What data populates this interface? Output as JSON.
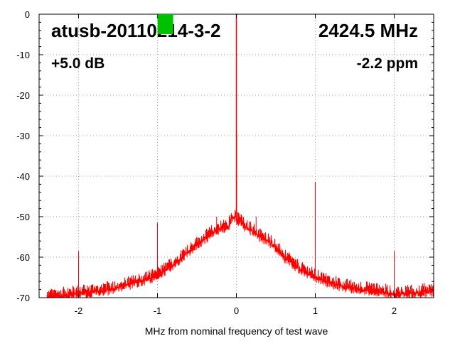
{
  "chart_data": {
    "type": "line",
    "title": "atusb-20110214-3-2",
    "frequency_label": "2424.5 MHz",
    "gain_label": "+5.0 dB",
    "ppm_label": "-2.2 ppm",
    "xlabel": "MHz from nominal frequency of test wave",
    "ylabel": "",
    "xlim": [
      -2.5,
      2.5
    ],
    "ylim": [
      -70,
      0
    ],
    "xticks": [
      -2,
      -1,
      0,
      1,
      2
    ],
    "xtick_labels": [
      "-2",
      "-1",
      "0",
      "1",
      "2"
    ],
    "yticks": [
      0,
      -10,
      -20,
      -30,
      -40,
      -50,
      -60,
      -70
    ],
    "ytick_labels": [
      "0",
      "-10",
      "-20",
      "-30",
      "-40",
      "-50",
      "-60",
      "-70"
    ],
    "grid": true,
    "line_color": "#ff0000",
    "marker_color": "#00c000",
    "marker_x": -0.9,
    "series": [
      {
        "x": [
          -2.4,
          -2.2,
          -2.0,
          -1.8,
          -1.6,
          -1.4,
          -1.2,
          -1.0,
          -0.8,
          -0.6,
          -0.5,
          -0.4,
          -0.3,
          -0.2,
          -0.1,
          -0.05,
          0.0,
          0.05,
          0.1,
          0.2,
          0.3,
          0.4,
          0.5,
          0.6,
          0.8,
          1.0,
          1.2,
          1.4,
          1.6,
          1.8,
          2.0,
          2.2,
          2.4,
          2.5
        ],
        "y": [
          -70,
          -69.5,
          -69,
          -68.5,
          -68,
          -67,
          -66,
          -64.5,
          -62,
          -58.5,
          -57,
          -55.5,
          -54,
          -53,
          -52.5,
          -50,
          0,
          -51,
          -52.5,
          -53.5,
          -55,
          -56,
          -57.5,
          -60,
          -63,
          -65,
          -66.5,
          -67.5,
          -68,
          -68.5,
          -69,
          -69,
          -68.5,
          -68.5
        ]
      }
    ],
    "spurs": [
      {
        "x": -2.0,
        "y": -58.5
      },
      {
        "x": -1.0,
        "y": -51.5
      },
      {
        "x": -0.25,
        "y": -50
      },
      {
        "x": 0.25,
        "y": -50
      },
      {
        "x": 1.0,
        "y": -41.5
      },
      {
        "x": 2.0,
        "y": -58.5
      }
    ]
  }
}
